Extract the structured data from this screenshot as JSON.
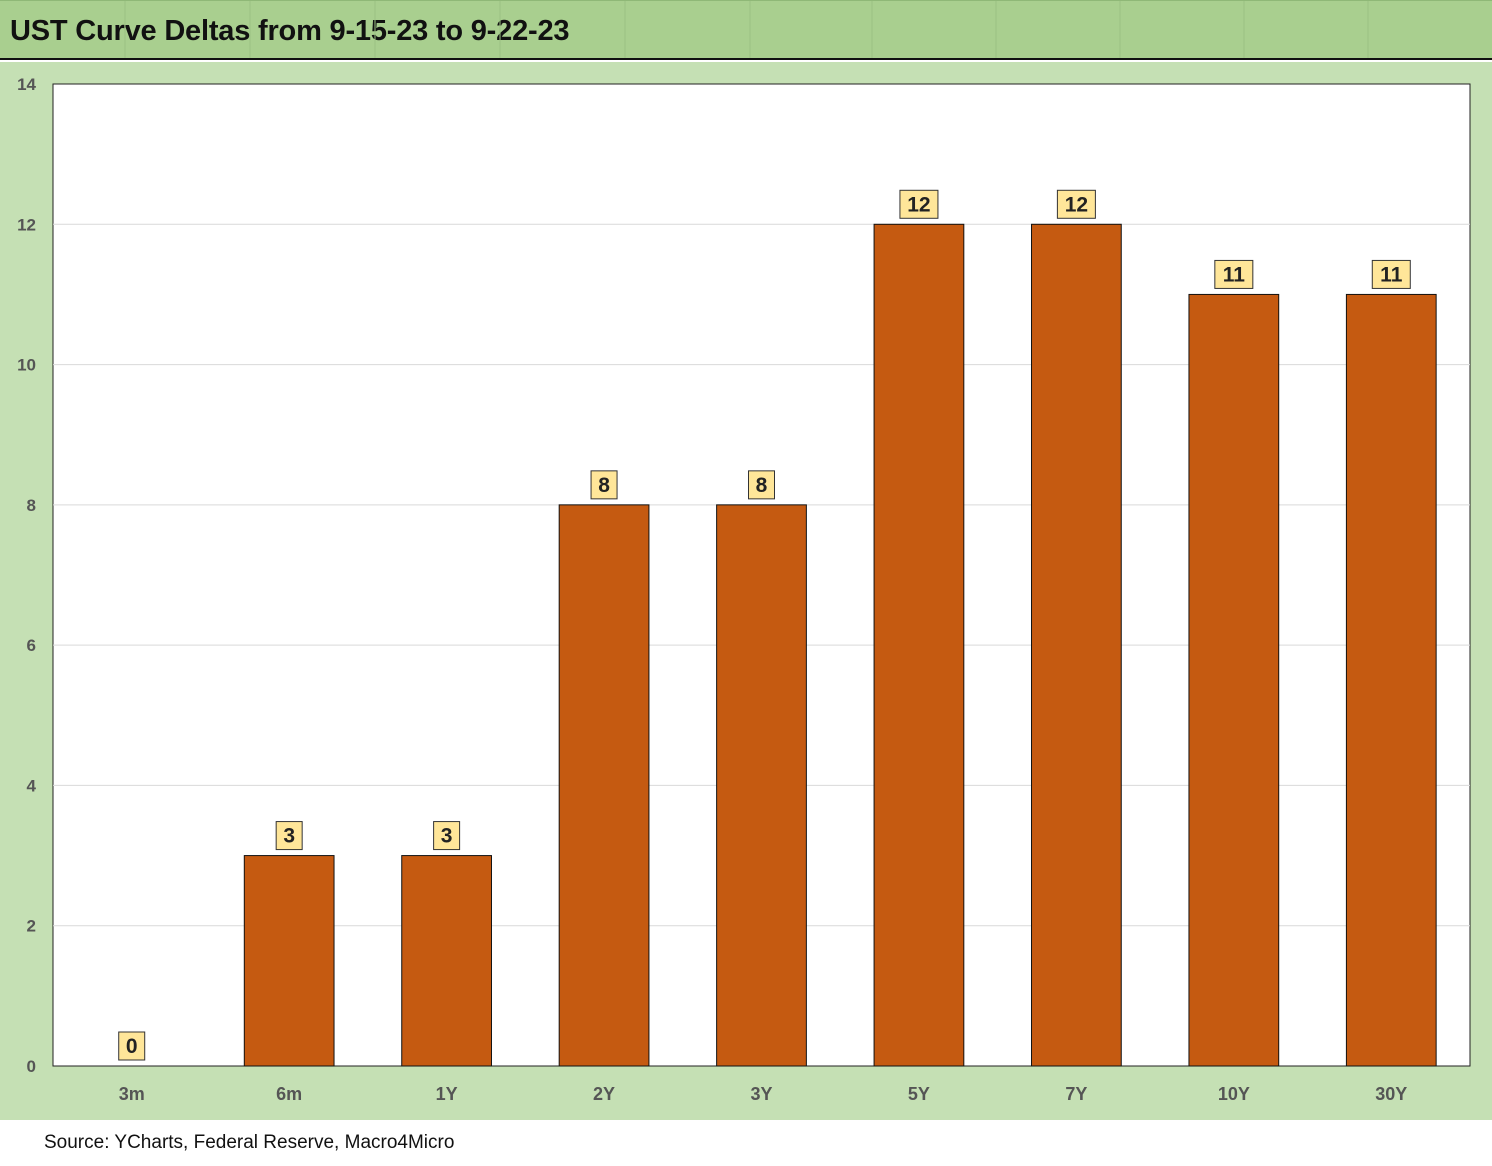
{
  "title": "UST Curve Deltas from 9-15-23 to 9-22-23",
  "source": "Source: YCharts, Federal Reserve, Macro4Micro",
  "colors": {
    "title_band": "#a9cf8f",
    "chart_background": "#c5e0b4",
    "plot_background": "#ffffff",
    "bar_fill": "#c55a11",
    "data_label_fill": "#ffe699"
  },
  "chart_data": {
    "type": "bar",
    "title": "UST Curve Deltas from 9-15-23 to 9-22-23",
    "categories": [
      "3m",
      "6m",
      "1Y",
      "2Y",
      "3Y",
      "5Y",
      "7Y",
      "10Y",
      "30Y"
    ],
    "values": [
      0,
      3,
      3,
      8,
      8,
      12,
      12,
      11,
      11
    ],
    "data_labels": [
      "0",
      "3",
      "3",
      "8",
      "8",
      "12",
      "12",
      "11",
      "11"
    ],
    "ylim": [
      0,
      14
    ],
    "yticks": [
      0,
      2,
      4,
      6,
      8,
      10,
      12,
      14
    ],
    "ytick_labels": [
      "0",
      "2",
      "4",
      "6",
      "8",
      "10",
      "12",
      "14"
    ],
    "xlabel": "",
    "ylabel": "",
    "grid": true,
    "legend": "none"
  }
}
